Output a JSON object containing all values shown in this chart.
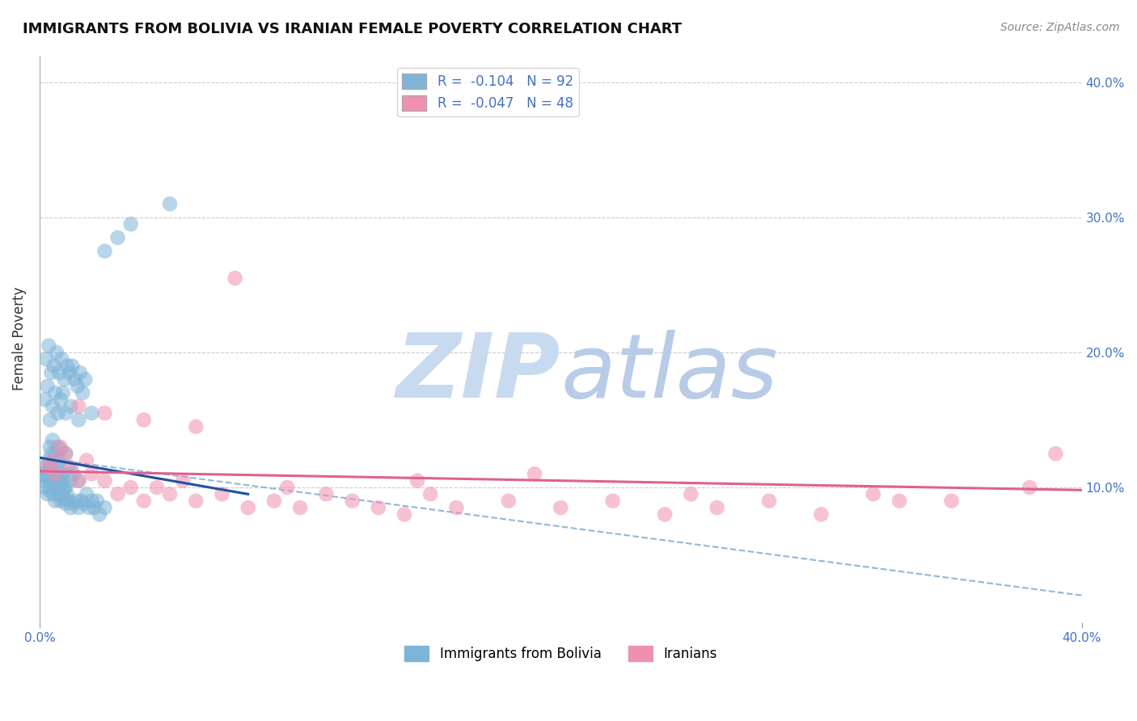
{
  "title": "IMMIGRANTS FROM BOLIVIA VS IRANIAN FEMALE POVERTY CORRELATION CHART",
  "source": "Source: ZipAtlas.com",
  "ylabel": "Female Poverty",
  "xlim": [
    0.0,
    40.0
  ],
  "ylim": [
    0.0,
    42.0
  ],
  "ytick_values": [
    10.0,
    20.0,
    30.0,
    40.0
  ],
  "ytick_labels": [
    "10.0%",
    "20.0%",
    "30.0%",
    "40.0%"
  ],
  "bolivia_color": "#7eb4d8",
  "iranian_color": "#f090b0",
  "bolivia_line_color": "#2050a0",
  "iranian_line_color": "#e06090",
  "dashed_line_color": "#90b8d8",
  "watermark_zip_color": "#c8daf0",
  "watermark_atlas_color": "#b8cce8",
  "bolivia_scatter_x": [
    0.1,
    0.15,
    0.2,
    0.2,
    0.25,
    0.3,
    0.3,
    0.35,
    0.35,
    0.4,
    0.4,
    0.4,
    0.45,
    0.45,
    0.5,
    0.5,
    0.5,
    0.5,
    0.55,
    0.55,
    0.6,
    0.6,
    0.6,
    0.65,
    0.65,
    0.7,
    0.7,
    0.7,
    0.75,
    0.75,
    0.8,
    0.8,
    0.8,
    0.85,
    0.85,
    0.9,
    0.9,
    0.95,
    1.0,
    1.0,
    1.0,
    1.05,
    1.1,
    1.1,
    1.2,
    1.2,
    1.3,
    1.3,
    1.4,
    1.5,
    1.5,
    1.6,
    1.7,
    1.8,
    1.9,
    2.0,
    2.1,
    2.2,
    2.3,
    2.5,
    0.2,
    0.3,
    0.4,
    0.5,
    0.6,
    0.7,
    0.8,
    0.9,
    1.0,
    1.2,
    1.5,
    2.0,
    0.25,
    0.35,
    0.45,
    0.55,
    0.65,
    0.75,
    0.85,
    0.95,
    1.05,
    1.15,
    1.25,
    1.35,
    1.45,
    1.55,
    1.65,
    1.75,
    2.5,
    3.0,
    3.5,
    5.0
  ],
  "bolivia_scatter_y": [
    10.5,
    11.0,
    10.0,
    11.5,
    10.8,
    9.5,
    11.2,
    10.5,
    12.0,
    9.8,
    11.5,
    13.0,
    10.5,
    12.5,
    9.5,
    10.5,
    11.8,
    13.5,
    10.0,
    12.0,
    9.0,
    10.5,
    12.5,
    9.8,
    11.5,
    9.5,
    10.8,
    13.0,
    10.0,
    12.0,
    9.0,
    10.5,
    12.8,
    9.5,
    11.0,
    9.2,
    10.5,
    9.8,
    8.8,
    10.0,
    12.5,
    9.5,
    9.0,
    11.5,
    8.5,
    10.5,
    8.8,
    11.0,
    9.0,
    8.5,
    10.5,
    9.0,
    8.8,
    9.5,
    8.5,
    9.0,
    8.5,
    9.0,
    8.0,
    8.5,
    16.5,
    17.5,
    15.0,
    16.0,
    17.0,
    15.5,
    16.5,
    17.0,
    15.5,
    16.0,
    15.0,
    15.5,
    19.5,
    20.5,
    18.5,
    19.0,
    20.0,
    18.5,
    19.5,
    18.0,
    19.0,
    18.5,
    19.0,
    18.0,
    17.5,
    18.5,
    17.0,
    18.0,
    27.5,
    28.5,
    29.5,
    31.0
  ],
  "iranian_scatter_x": [
    0.3,
    0.5,
    0.6,
    0.8,
    1.0,
    1.2,
    1.5,
    1.8,
    2.0,
    2.5,
    3.0,
    3.5,
    4.0,
    4.5,
    5.0,
    5.5,
    6.0,
    7.0,
    8.0,
    9.0,
    10.0,
    11.0,
    12.0,
    13.0,
    14.0,
    15.0,
    16.0,
    18.0,
    20.0,
    22.0,
    24.0,
    26.0,
    28.0,
    30.0,
    32.0,
    35.0,
    38.0,
    1.5,
    2.5,
    4.0,
    6.0,
    9.5,
    14.5,
    19.0,
    25.0,
    33.0,
    39.0,
    7.5
  ],
  "iranian_scatter_y": [
    11.5,
    12.0,
    11.0,
    13.0,
    12.5,
    11.5,
    10.5,
    12.0,
    11.0,
    10.5,
    9.5,
    10.0,
    9.0,
    10.0,
    9.5,
    10.5,
    9.0,
    9.5,
    8.5,
    9.0,
    8.5,
    9.5,
    9.0,
    8.5,
    8.0,
    9.5,
    8.5,
    9.0,
    8.5,
    9.0,
    8.0,
    8.5,
    9.0,
    8.0,
    9.5,
    9.0,
    10.0,
    16.0,
    15.5,
    15.0,
    14.5,
    10.0,
    10.5,
    11.0,
    9.5,
    9.0,
    12.5,
    25.5
  ],
  "bolivia_line": {
    "x0": 0.0,
    "x1": 8.0,
    "y0": 12.2,
    "y1": 9.5
  },
  "dashed_line": {
    "x0": 0.0,
    "x1": 40.0,
    "y0": 12.2,
    "y1": 2.0
  },
  "iranian_line": {
    "x0": 0.0,
    "x1": 40.0,
    "y0": 11.2,
    "y1": 9.8
  }
}
